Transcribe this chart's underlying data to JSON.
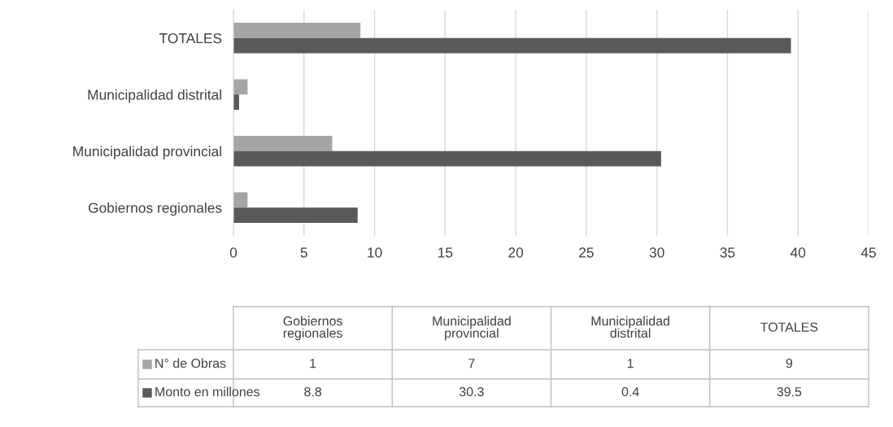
{
  "chart_data": {
    "type": "bar",
    "orientation": "horizontal",
    "categories": [
      "TOTALES",
      "Municipalidad distrital",
      "Municipalidad provincial",
      "Gobiernos regionales"
    ],
    "series": [
      {
        "name": "N° de Obras",
        "color": "#a5a5a5",
        "values": [
          9,
          1,
          7,
          1
        ]
      },
      {
        "name": "Monto en millones",
        "color": "#595959",
        "values": [
          39.5,
          0.4,
          30.3,
          8.8
        ]
      }
    ],
    "xlim": [
      0,
      45
    ],
    "xticks": [
      0,
      5,
      10,
      15,
      20,
      25,
      30,
      35,
      40,
      45
    ],
    "grid": "x",
    "legend": "bottom",
    "annotations": [
      "1",
      "7",
      "1",
      "9",
      "8.8",
      "30.3",
      "0.4",
      "39.5"
    ]
  }
}
